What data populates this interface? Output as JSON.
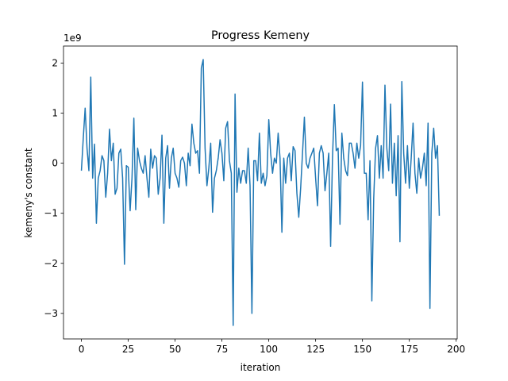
{
  "chart_data": {
    "type": "line",
    "title": "Progress Kemeny",
    "x_label": "iteration",
    "y_label": "kemeny's constant",
    "y_offset_label": "1e9",
    "color": "#1f77b4",
    "x": [
      0,
      1,
      2,
      3,
      4,
      5,
      6,
      7,
      8,
      9,
      10,
      11,
      12,
      13,
      14,
      15,
      16,
      17,
      18,
      19,
      20,
      21,
      22,
      23,
      24,
      25,
      26,
      27,
      28,
      29,
      30,
      31,
      32,
      33,
      34,
      35,
      36,
      37,
      38,
      39,
      40,
      41,
      42,
      43,
      44,
      45,
      46,
      47,
      48,
      49,
      50,
      51,
      52,
      53,
      54,
      55,
      56,
      57,
      58,
      59,
      60,
      61,
      62,
      63,
      64,
      65,
      66,
      67,
      68,
      69,
      70,
      71,
      72,
      73,
      74,
      75,
      76,
      77,
      78,
      79,
      80,
      81,
      82,
      83,
      84,
      85,
      86,
      87,
      88,
      89,
      90,
      91,
      92,
      93,
      94,
      95,
      96,
      97,
      98,
      99,
      100,
      101,
      102,
      103,
      104,
      105,
      106,
      107,
      108,
      109,
      110,
      111,
      112,
      113,
      114,
      115,
      116,
      117,
      118,
      119,
      120,
      121,
      122,
      123,
      124,
      125,
      126,
      127,
      128,
      129,
      130,
      131,
      132,
      133,
      134,
      135,
      136,
      137,
      138,
      139,
      140,
      141,
      142,
      143,
      144,
      145,
      146,
      147,
      148,
      149,
      150,
      151,
      152,
      153,
      154,
      155,
      156,
      157,
      158,
      159,
      160,
      161,
      162,
      163,
      164,
      165,
      166,
      167,
      168,
      169,
      170,
      171,
      172,
      173,
      174,
      175,
      176,
      177,
      178,
      179,
      180,
      181,
      182,
      183,
      184,
      185,
      186,
      187,
      188,
      189,
      190,
      191
    ],
    "values": [
      -0.15,
      0.5,
      1.1,
      0.3,
      -0.15,
      1.72,
      -0.3,
      0.38,
      -1.2,
      -0.3,
      -0.15,
      0.15,
      0.05,
      -0.68,
      -0.2,
      0.68,
      0.05,
      0.4,
      -0.62,
      -0.5,
      0.2,
      0.28,
      -0.3,
      -2.02,
      -0.05,
      -0.08,
      -0.95,
      -0.3,
      0.9,
      -0.93,
      0.3,
      0.05,
      -0.1,
      -0.2,
      0.15,
      -0.3,
      -0.68,
      0.28,
      -0.1,
      0.15,
      0.1,
      -0.62,
      -0.3,
      0.56,
      -1.2,
      0.1,
      0.35,
      -0.5,
      0.1,
      0.3,
      -0.2,
      -0.3,
      -0.48,
      0.05,
      0.12,
      0.0,
      -0.45,
      0.2,
      -0.05,
      0.78,
      0.4,
      0.2,
      0.25,
      -0.2,
      1.9,
      2.07,
      0.3,
      -0.45,
      -0.1,
      0.4,
      -0.98,
      -0.3,
      -0.15,
      0.1,
      0.47,
      0.2,
      -0.35,
      0.7,
      0.83,
      0.05,
      -0.2,
      -3.24,
      1.38,
      -0.58,
      -0.1,
      -0.4,
      -0.15,
      -0.15,
      -0.4,
      0.3,
      -0.45,
      -3.0,
      0.05,
      0.05,
      -0.35,
      0.6,
      -0.4,
      -0.2,
      -0.45,
      -0.25,
      0.87,
      0.2,
      -0.2,
      0.1,
      0.0,
      0.6,
      0.1,
      -1.38,
      0.1,
      -0.4,
      0.1,
      0.2,
      -0.35,
      0.33,
      0.25,
      -0.6,
      -1.08,
      -0.5,
      0.2,
      0.92,
      0.0,
      -0.1,
      0.1,
      0.2,
      0.3,
      -0.3,
      -0.85,
      0.2,
      0.35,
      0.2,
      -0.55,
      -0.2,
      0.2,
      -1.66,
      0.1,
      1.17,
      0.25,
      0.3,
      -1.22,
      0.6,
      0.1,
      -0.15,
      -0.25,
      0.4,
      0.4,
      0.2,
      -0.1,
      0.4,
      0.1,
      0.35,
      1.62,
      -0.2,
      -0.2,
      -1.13,
      0.05,
      -2.75,
      -0.7,
      0.3,
      0.55,
      -0.3,
      0.35,
      -0.3,
      1.56,
      0.3,
      -0.15,
      1.18,
      -0.4,
      0.4,
      -0.65,
      0.55,
      -1.57,
      1.63,
      0.2,
      -0.4,
      0.35,
      -0.5,
      0.1,
      0.8,
      -0.2,
      -0.6,
      0.1,
      -0.3,
      -0.1,
      0.2,
      -0.45,
      0.8,
      -2.9,
      0.2,
      0.7,
      0.1,
      0.35,
      -1.05
    ],
    "xlim": [
      -9.55,
      200.55
    ],
    "xticks": [
      0,
      25,
      50,
      75,
      100,
      125,
      150,
      175,
      200
    ],
    "ylim": [
      -3.51,
      2.34
    ],
    "yticks": [
      {
        "value": -3,
        "label": "−3"
      },
      {
        "value": -2,
        "label": "−2"
      },
      {
        "value": -1,
        "label": "−1"
      },
      0,
      1,
      2
    ]
  }
}
